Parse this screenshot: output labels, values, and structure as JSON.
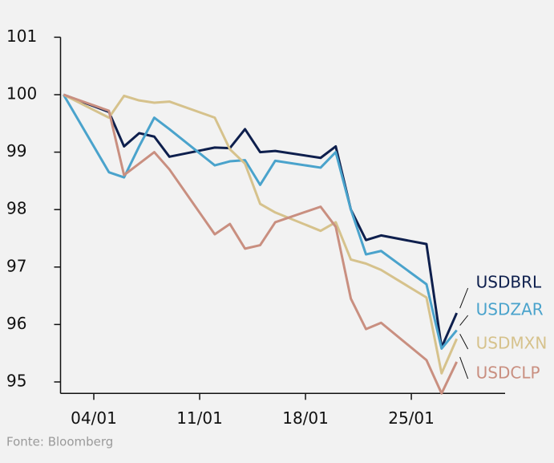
{
  "chart_data": {
    "type": "line",
    "source": "Fonte: Bloomberg",
    "x": [
      2,
      5,
      6,
      7,
      8,
      9,
      12,
      13,
      14,
      15,
      16,
      19,
      20,
      21,
      22,
      23,
      26,
      27,
      28
    ],
    "series": [
      {
        "name": "USDBRL",
        "color": "#0e1f4d",
        "values": [
          100,
          99.7,
          99.1,
          99.33,
          99.27,
          98.92,
          99.08,
          99.07,
          99.4,
          99.0,
          99.02,
          98.9,
          99.1,
          98.0,
          97.47,
          97.55,
          97.4,
          95.6,
          96.2
        ]
      },
      {
        "name": "USDZAR",
        "color": "#4aa3cc",
        "values": [
          100,
          98.65,
          98.56,
          99.1,
          99.6,
          99.4,
          98.77,
          98.84,
          98.86,
          98.43,
          98.85,
          98.73,
          99.0,
          98.0,
          97.22,
          97.28,
          96.7,
          95.58,
          95.9
        ]
      },
      {
        "name": "USDMXN",
        "color": "#d6c28c",
        "values": [
          100,
          99.6,
          99.98,
          99.9,
          99.86,
          99.88,
          99.6,
          99.05,
          98.8,
          98.1,
          97.95,
          97.63,
          97.78,
          97.13,
          97.06,
          96.95,
          96.47,
          95.15,
          95.75
        ]
      },
      {
        "name": "USDCLP",
        "color": "#c98f80",
        "values": [
          100,
          99.72,
          98.6,
          98.8,
          99.0,
          98.7,
          97.57,
          97.75,
          97.32,
          97.38,
          97.78,
          98.05,
          97.7,
          96.45,
          95.92,
          96.03,
          95.38,
          94.8,
          95.35
        ]
      }
    ],
    "xlim": [
      1.8,
      31.2
    ],
    "xticks": [
      {
        "value": 4,
        "label": "04/01"
      },
      {
        "value": 11,
        "label": "11/01"
      },
      {
        "value": 18,
        "label": "18/01"
      },
      {
        "value": 25,
        "label": "25/01"
      }
    ],
    "ylim": [
      94.8,
      101
    ],
    "yticks": [
      95,
      96,
      97,
      98,
      99,
      100,
      101
    ]
  }
}
